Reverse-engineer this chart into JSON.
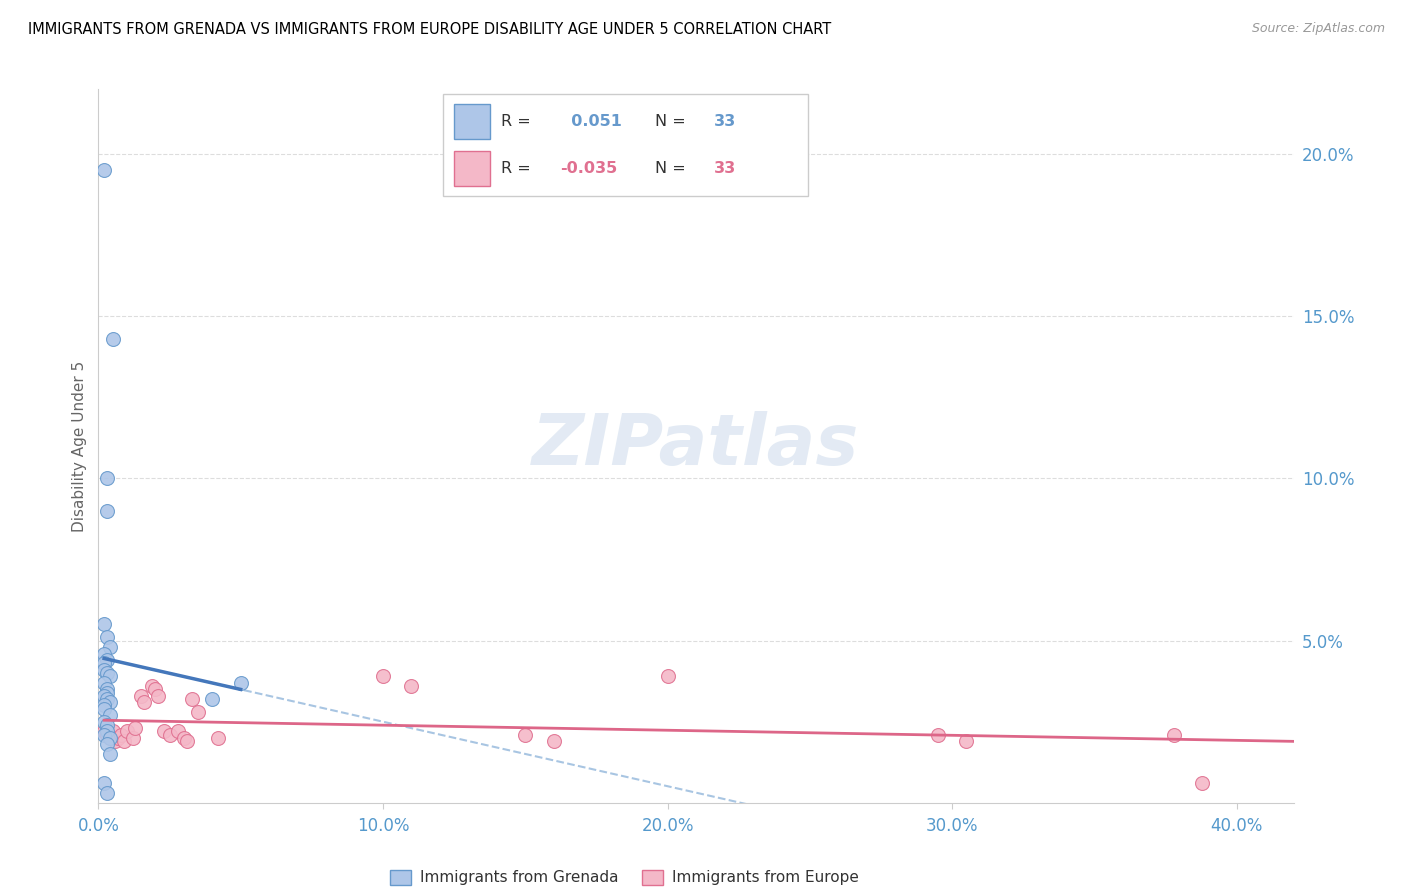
{
  "title": "IMMIGRANTS FROM GRENADA VS IMMIGRANTS FROM EUROPE DISABILITY AGE UNDER 5 CORRELATION CHART",
  "source": "Source: ZipAtlas.com",
  "ylabel": "Disability Age Under 5",
  "legend_grenada": "Immigrants from Grenada",
  "legend_europe": "Immigrants from Europe",
  "r_grenada": "0.051",
  "n_grenada": "33",
  "r_europe": "-0.035",
  "n_europe": "33",
  "color_grenada_fill": "#aec6e8",
  "color_grenada_edge": "#6699cc",
  "color_europe_fill": "#f4b8c8",
  "color_europe_edge": "#e07090",
  "color_grenada_solid_line": "#4477bb",
  "color_europe_solid_line": "#dd6688",
  "color_dashed_line": "#99bbdd",
  "scatter_grenada": [
    [
      0.002,
      0.195
    ],
    [
      0.005,
      0.143
    ],
    [
      0.003,
      0.1
    ],
    [
      0.003,
      0.09
    ],
    [
      0.002,
      0.055
    ],
    [
      0.003,
      0.051
    ],
    [
      0.004,
      0.048
    ],
    [
      0.002,
      0.046
    ],
    [
      0.003,
      0.044
    ],
    [
      0.002,
      0.043
    ],
    [
      0.002,
      0.041
    ],
    [
      0.003,
      0.04
    ],
    [
      0.004,
      0.039
    ],
    [
      0.002,
      0.037
    ],
    [
      0.003,
      0.035
    ],
    [
      0.003,
      0.034
    ],
    [
      0.002,
      0.033
    ],
    [
      0.003,
      0.032
    ],
    [
      0.004,
      0.031
    ],
    [
      0.002,
      0.03
    ],
    [
      0.002,
      0.029
    ],
    [
      0.004,
      0.027
    ],
    [
      0.002,
      0.025
    ],
    [
      0.003,
      0.024
    ],
    [
      0.003,
      0.022
    ],
    [
      0.002,
      0.021
    ],
    [
      0.004,
      0.02
    ],
    [
      0.003,
      0.018
    ],
    [
      0.004,
      0.015
    ],
    [
      0.05,
      0.037
    ],
    [
      0.04,
      0.032
    ],
    [
      0.002,
      0.006
    ],
    [
      0.003,
      0.003
    ]
  ],
  "scatter_europe": [
    [
      0.002,
      0.022
    ],
    [
      0.003,
      0.021
    ],
    [
      0.004,
      0.02
    ],
    [
      0.005,
      0.022
    ],
    [
      0.006,
      0.019
    ],
    [
      0.007,
      0.02
    ],
    [
      0.008,
      0.021
    ],
    [
      0.009,
      0.019
    ],
    [
      0.01,
      0.022
    ],
    [
      0.012,
      0.02
    ],
    [
      0.013,
      0.023
    ],
    [
      0.015,
      0.033
    ],
    [
      0.016,
      0.031
    ],
    [
      0.019,
      0.036
    ],
    [
      0.02,
      0.035
    ],
    [
      0.021,
      0.033
    ],
    [
      0.023,
      0.022
    ],
    [
      0.025,
      0.021
    ],
    [
      0.028,
      0.022
    ],
    [
      0.03,
      0.02
    ],
    [
      0.031,
      0.019
    ],
    [
      0.033,
      0.032
    ],
    [
      0.035,
      0.028
    ],
    [
      0.042,
      0.02
    ],
    [
      0.1,
      0.039
    ],
    [
      0.11,
      0.036
    ],
    [
      0.15,
      0.021
    ],
    [
      0.16,
      0.019
    ],
    [
      0.2,
      0.039
    ],
    [
      0.295,
      0.021
    ],
    [
      0.305,
      0.019
    ],
    [
      0.378,
      0.021
    ],
    [
      0.388,
      0.006
    ]
  ],
  "xlim": [
    0.0,
    0.42
  ],
  "ylim": [
    0.0,
    0.22
  ],
  "xticks": [
    0.0,
    0.1,
    0.2,
    0.3,
    0.4
  ],
  "yticks_right": [
    0.05,
    0.1,
    0.15,
    0.2
  ],
  "background_color": "#ffffff",
  "grid_color": "#dddddd"
}
